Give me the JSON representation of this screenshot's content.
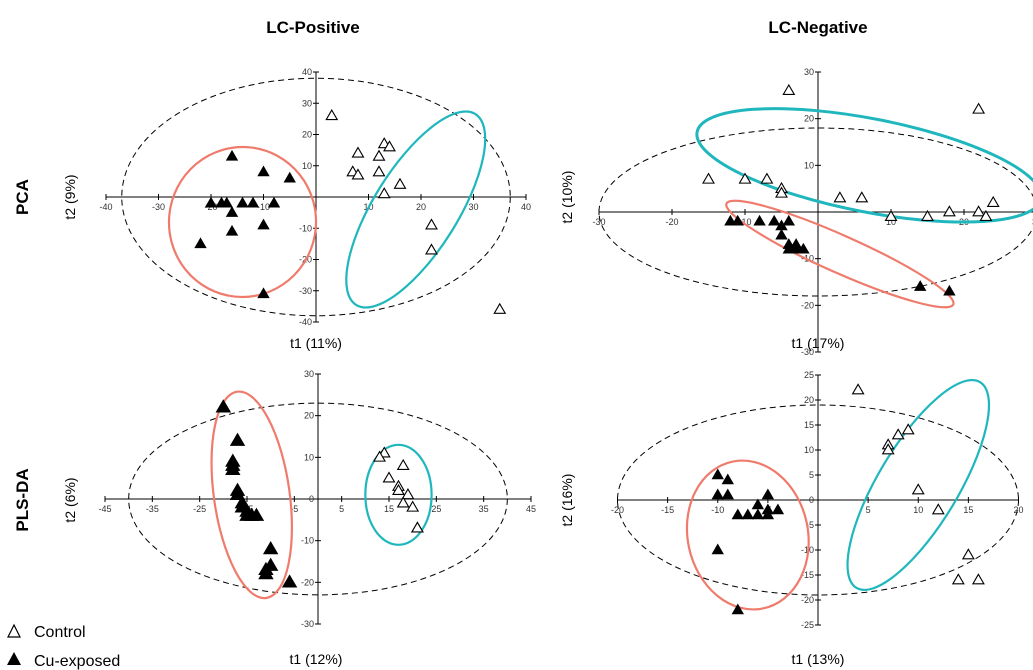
{
  "column_titles": [
    "LC-Positive",
    "LC-Negative"
  ],
  "row_titles": [
    "PCA",
    "PLS-DA"
  ],
  "legend": [
    {
      "label": "Control",
      "marker": "open-triangle"
    },
    {
      "label": "Cu-exposed",
      "marker": "filled-triangle"
    }
  ],
  "colors": {
    "cluster_cu": "#ef7b6c",
    "cluster_control": "#1fb7bd",
    "axis": "#000000",
    "confidence_ellipse": "#000000"
  },
  "chart_data": [
    {
      "type": "scatter",
      "row": "PCA",
      "column": "LC-Positive",
      "xlabel": "t1 (11%)",
      "ylabel": "t2 (9%)",
      "xlim": [
        -40,
        40
      ],
      "ylim": [
        -40,
        40
      ],
      "xticks": [
        -40,
        -30,
        -20,
        -10,
        0,
        10,
        20,
        30,
        40
      ],
      "yticks": [
        -40,
        -30,
        -20,
        -10,
        0,
        10,
        20,
        30,
        40
      ],
      "confidence_ellipse": {
        "rx": 37,
        "ry": 38
      },
      "series": [
        {
          "name": "Control",
          "points": [
            [
              3,
              26
            ],
            [
              8,
              14
            ],
            [
              12,
              13
            ],
            [
              13,
              17
            ],
            [
              14,
              16
            ],
            [
              7,
              8
            ],
            [
              8,
              7
            ],
            [
              12,
              8
            ],
            [
              16,
              4
            ],
            [
              13,
              1
            ],
            [
              22,
              -9
            ],
            [
              22,
              -17
            ],
            [
              35,
              -36
            ]
          ]
        },
        {
          "name": "Cu-exposed",
          "points": [
            [
              -16,
              13
            ],
            [
              -10,
              8
            ],
            [
              -5,
              6
            ],
            [
              -20,
              -2
            ],
            [
              -18,
              -2
            ],
            [
              -17,
              -2
            ],
            [
              -14,
              -2
            ],
            [
              -12,
              -2
            ],
            [
              -8,
              -2
            ],
            [
              -16,
              -5
            ],
            [
              -10,
              -9
            ],
            [
              -16,
              -11
            ],
            [
              -22,
              -15
            ],
            [
              -10,
              -31
            ]
          ]
        }
      ]
    },
    {
      "type": "scatter",
      "row": "PCA",
      "column": "LC-Negative",
      "xlabel": "t1 (17%)",
      "ylabel": "t2 (10%)",
      "xlim": [
        -30,
        30
      ],
      "ylim": [
        -30,
        30
      ],
      "xticks": [
        -30,
        -20,
        -10,
        0,
        10,
        20,
        30
      ],
      "yticks": [
        -30,
        -20,
        -10,
        0,
        10,
        20,
        30
      ],
      "confidence_ellipse": {
        "rx": 30,
        "ry": 18
      },
      "series": [
        {
          "name": "Control",
          "points": [
            [
              -4,
              26
            ],
            [
              22,
              22
            ],
            [
              -15,
              7
            ],
            [
              -10,
              7
            ],
            [
              -7,
              7
            ],
            [
              -5,
              5
            ],
            [
              -5,
              4
            ],
            [
              3,
              3
            ],
            [
              6,
              3
            ],
            [
              24,
              2
            ],
            [
              22,
              0
            ],
            [
              18,
              0
            ],
            [
              15,
              -1
            ],
            [
              10,
              -1
            ],
            [
              23,
              -1
            ]
          ]
        },
        {
          "name": "Cu-exposed",
          "points": [
            [
              -12,
              -2
            ],
            [
              -11,
              -2
            ],
            [
              -8,
              -2
            ],
            [
              -6,
              -2
            ],
            [
              -5,
              -3
            ],
            [
              -4,
              -2
            ],
            [
              -5,
              -5
            ],
            [
              -4,
              -7
            ],
            [
              -3,
              -7
            ],
            [
              -3,
              -8
            ],
            [
              -2,
              -8
            ],
            [
              -4,
              -8
            ],
            [
              14,
              -16
            ],
            [
              18,
              -17
            ]
          ]
        }
      ]
    },
    {
      "type": "scatter",
      "row": "PLS-DA",
      "column": "LC-Positive",
      "xlabel": "t1 (12%)",
      "ylabel": "t2 (6%)",
      "xlim": [
        -45,
        45
      ],
      "ylim": [
        -30,
        30
      ],
      "xticks": [
        -45,
        -35,
        -25,
        -15,
        -5,
        5,
        15,
        25,
        35,
        45
      ],
      "yticks": [
        -30,
        -20,
        -10,
        0,
        10,
        20,
        30
      ],
      "confidence_ellipse": {
        "rx": 40,
        "ry": 23
      },
      "series": [
        {
          "name": "Control",
          "points": [
            [
              14,
              11
            ],
            [
              13,
              10
            ],
            [
              18,
              8
            ],
            [
              15,
              5
            ],
            [
              17,
              3
            ],
            [
              17,
              2
            ],
            [
              19,
              1
            ],
            [
              18,
              -1
            ],
            [
              20,
              -2
            ],
            [
              21,
              -7
            ],
            [
              21,
              -7
            ]
          ]
        },
        {
          "name": "Cu-exposed",
          "points": [
            [
              -20,
              22
            ],
            [
              -20,
              22
            ],
            [
              -17,
              14
            ],
            [
              -18,
              9
            ],
            [
              -18,
              8
            ],
            [
              -18,
              7
            ],
            [
              -17,
              2
            ],
            [
              -17,
              1
            ],
            [
              -16,
              -1
            ],
            [
              -16,
              -2
            ],
            [
              -15,
              -3
            ],
            [
              -15,
              -4
            ],
            [
              -14,
              -4
            ],
            [
              -13,
              -4
            ],
            [
              -10,
              -12
            ],
            [
              -11,
              -17
            ],
            [
              -11,
              -18
            ],
            [
              -10,
              -16
            ],
            [
              -6,
              -20
            ]
          ]
        }
      ]
    },
    {
      "type": "scatter",
      "row": "PLS-DA",
      "column": "LC-Negative",
      "xlabel": "t1 (13%)",
      "ylabel": "t2 (16%)",
      "xlim": [
        -20,
        20
      ],
      "ylim": [
        -25,
        25
      ],
      "xticks": [
        -20,
        -15,
        -10,
        -5,
        0,
        5,
        10,
        15,
        20
      ],
      "yticks": [
        -25,
        -20,
        -15,
        -10,
        -5,
        0,
        5,
        10,
        15,
        20,
        25
      ],
      "confidence_ellipse": {
        "rx": 20,
        "ry": 19
      },
      "series": [
        {
          "name": "Control",
          "points": [
            [
              4,
              22
            ],
            [
              7,
              11
            ],
            [
              7,
              10
            ],
            [
              8,
              13
            ],
            [
              9,
              14
            ],
            [
              10,
              2
            ],
            [
              12,
              -2
            ],
            [
              15,
              -11
            ],
            [
              16,
              -16
            ],
            [
              14,
              -16
            ]
          ]
        },
        {
          "name": "Cu-exposed",
          "points": [
            [
              -10,
              5
            ],
            [
              -10,
              1
            ],
            [
              -9,
              4
            ],
            [
              -9,
              1
            ],
            [
              -5,
              1
            ],
            [
              -6,
              -1
            ],
            [
              -8,
              -3
            ],
            [
              -7,
              -3
            ],
            [
              -6,
              -3
            ],
            [
              -5,
              -2
            ],
            [
              -4,
              -2
            ],
            [
              -5,
              -3
            ],
            [
              -10,
              -10
            ],
            [
              -8,
              -22
            ]
          ]
        }
      ]
    }
  ]
}
